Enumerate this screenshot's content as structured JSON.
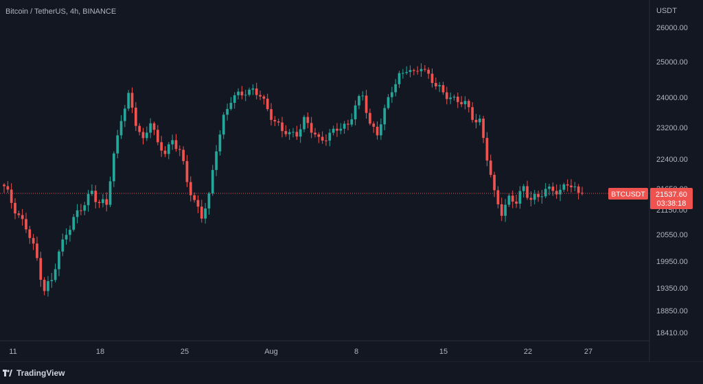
{
  "chart_data": {
    "type": "candlestick",
    "title": "Bitcoin / TetherUS, 4h, BINANCE",
    "currency": "USDT",
    "y_ticks": [
      "26000.00",
      "25000.00",
      "24000.00",
      "23200.00",
      "22400.00",
      "21650.00",
      "21150.00",
      "20550.00",
      "19950.00",
      "19350.00",
      "18850.00",
      "18410.00"
    ],
    "y_tick_values": [
      26000,
      25000,
      24000,
      23200,
      22400,
      21650,
      21150,
      20550,
      19950,
      19350,
      18850,
      18410
    ],
    "x_ticks": [
      "11",
      "18",
      "25",
      "Aug",
      "8",
      "15",
      "22",
      "27"
    ],
    "last_price": {
      "symbol": "BTCUSDT",
      "value": "21537.60",
      "countdown": "03:38:18",
      "price": 21537.6
    },
    "colors": {
      "background": "#131722",
      "up": "#26a69a",
      "down": "#ef5350",
      "grid": "#1e222d",
      "text": "#b2b5be",
      "price_line": "#ef5350"
    },
    "close_path": [
      [
        0,
        21650
      ],
      [
        3,
        21200
      ],
      [
        6,
        20700
      ],
      [
        9,
        20000
      ],
      [
        11,
        19350
      ],
      [
        13,
        19500
      ],
      [
        15,
        20100
      ],
      [
        17,
        20650
      ],
      [
        20,
        21050
      ],
      [
        22,
        21250
      ],
      [
        24,
        21650
      ],
      [
        26,
        21300
      ],
      [
        28,
        21250
      ],
      [
        30,
        22500
      ],
      [
        32,
        23500
      ],
      [
        34,
        24000
      ],
      [
        36,
        23300
      ],
      [
        38,
        22900
      ],
      [
        40,
        23400
      ],
      [
        42,
        22700
      ],
      [
        44,
        22600
      ],
      [
        46,
        22900
      ],
      [
        48,
        22600
      ],
      [
        50,
        21800
      ],
      [
        52,
        21400
      ],
      [
        54,
        21000
      ],
      [
        56,
        21400
      ],
      [
        58,
        22700
      ],
      [
        60,
        23500
      ],
      [
        62,
        23900
      ],
      [
        64,
        24050
      ],
      [
        66,
        24200
      ],
      [
        68,
        24200
      ],
      [
        70,
        24000
      ],
      [
        72,
        23700
      ],
      [
        74,
        23400
      ],
      [
        76,
        23100
      ],
      [
        78,
        23000
      ],
      [
        80,
        23100
      ],
      [
        82,
        23400
      ],
      [
        84,
        23100
      ],
      [
        86,
        22900
      ],
      [
        88,
        23000
      ],
      [
        90,
        23050
      ],
      [
        92,
        23200
      ],
      [
        94,
        23300
      ],
      [
        96,
        23800
      ],
      [
        98,
        24000
      ],
      [
        100,
        23300
      ],
      [
        102,
        23100
      ],
      [
        104,
        23600
      ],
      [
        106,
        24200
      ],
      [
        108,
        24650
      ],
      [
        110,
        24800
      ],
      [
        112,
        24600
      ],
      [
        114,
        24900
      ],
      [
        116,
        24650
      ],
      [
        118,
        24300
      ],
      [
        120,
        24100
      ],
      [
        122,
        24050
      ],
      [
        124,
        23900
      ],
      [
        126,
        23800
      ],
      [
        128,
        23500
      ],
      [
        130,
        23400
      ],
      [
        132,
        22400
      ],
      [
        134,
        21500
      ],
      [
        136,
        21150
      ],
      [
        138,
        21400
      ],
      [
        140,
        21300
      ],
      [
        142,
        21700
      ],
      [
        144,
        21450
      ],
      [
        146,
        21400
      ],
      [
        148,
        21600
      ],
      [
        150,
        21700
      ],
      [
        152,
        21550
      ],
      [
        154,
        21750
      ],
      [
        156,
        21650
      ],
      [
        158,
        21550
      ]
    ]
  },
  "footer": {
    "brand": "TradingView"
  }
}
